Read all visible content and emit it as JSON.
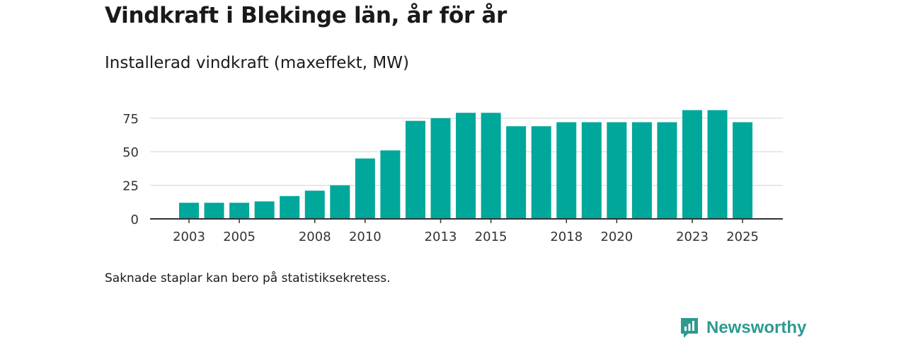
{
  "header": {
    "title": "Vindkraft i Blekinge län, år för år",
    "subtitle": "Installerad vindkraft (maxeffekt, MW)"
  },
  "footnote": "Saknade staplar kan bero på statistiksekretess.",
  "brand": {
    "name": "Newsworthy",
    "color": "#2e9a91"
  },
  "colors": {
    "bar": "#00a79b",
    "grid": "#dcdcdc",
    "axis": "#333333",
    "text": "#333333"
  },
  "chart_data": {
    "type": "bar",
    "title": "Installerad vindkraft (maxeffekt, MW)",
    "xlabel": "",
    "ylabel": "",
    "categories": [
      2003,
      2004,
      2005,
      2006,
      2007,
      2008,
      2009,
      2010,
      2011,
      2012,
      2013,
      2014,
      2015,
      2016,
      2017,
      2018,
      2019,
      2020,
      2021,
      2022,
      2023,
      2024,
      2025
    ],
    "values": [
      12,
      12,
      12,
      13,
      17,
      21,
      25,
      45,
      51,
      73,
      75,
      79,
      79,
      69,
      69,
      72,
      72,
      72,
      72,
      72,
      81,
      81,
      72
    ],
    "xticks": [
      "2003",
      "2005",
      "2008",
      "2010",
      "2013",
      "2015",
      "2018",
      "2020",
      "2023",
      "2025"
    ],
    "yticks": [
      "0",
      "25",
      "50",
      "75"
    ],
    "ylim": [
      0,
      86
    ],
    "grid": true
  }
}
